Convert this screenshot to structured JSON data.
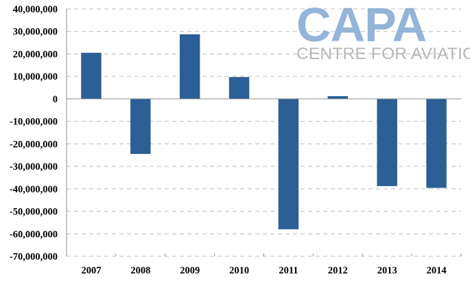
{
  "chart_data": {
    "type": "bar",
    "title": "",
    "xlabel": "",
    "ylabel": "",
    "categories": [
      "2007",
      "2008",
      "2009",
      "2010",
      "2011",
      "2012",
      "2013",
      "2014"
    ],
    "values": [
      20500000,
      -24500000,
      28700000,
      9700000,
      -58000000,
      1200000,
      -38800000,
      -39600000
    ],
    "ylim": [
      -70000000,
      40000000
    ],
    "yticks": [
      40000000,
      30000000,
      20000000,
      10000000,
      0,
      -10000000,
      -20000000,
      -30000000,
      -40000000,
      -50000000,
      -60000000,
      -70000000
    ],
    "ytick_labels": [
      "40,000,000",
      "30,000,000",
      "20,000,000",
      "10,000,000",
      "0",
      "-10,000,000",
      "-20,000,000",
      "-30,000,000",
      "-40,000,000",
      "-50,000,000",
      "-60,000,000",
      "-70,000,000"
    ],
    "grid": true,
    "bar_color": "#2b5f95"
  },
  "watermark": {
    "main": "CAPA",
    "sub": "CENTRE FOR AVIATION",
    "main_color": "#8fb0d6",
    "sub_color": "#b3b3b3"
  }
}
